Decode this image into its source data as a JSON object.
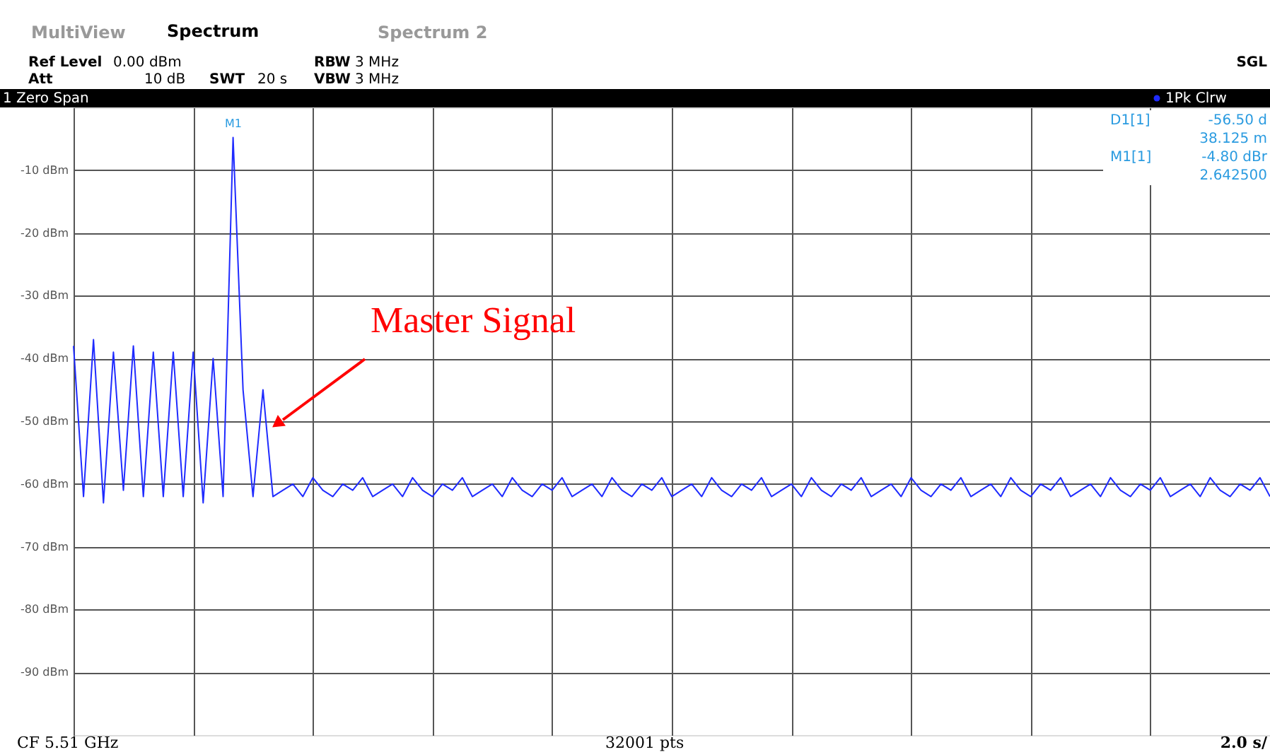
{
  "chart_data": {
    "type": "line",
    "title": "1 Zero Span",
    "annotations": [
      "MultiView",
      "Spectrum",
      "Spectrum 2",
      "Ref Level",
      "0.00 dBm",
      "Att",
      "10 dB",
      "SWT",
      "20 s",
      "RBW",
      "3 MHz",
      "VBW",
      "3 MHz",
      "SGL",
      "D1[1]",
      "-56.50 d",
      "38.125 m",
      "M1[1]",
      "-4.80 dBr",
      "2.642500",
      "M1",
      "Master Signal",
      "CF 5.51 GHz",
      "32001 pts",
      "2.0 s/"
    ],
    "categories": [
      null,
      null,
      null,
      null,
      null,
      null,
      null,
      null,
      null,
      null,
      null,
      null,
      null,
      null,
      null,
      null,
      null,
      null,
      null,
      null,
      null,
      null,
      null,
      null,
      null,
      null,
      null,
      null,
      null,
      null,
      null,
      null,
      null,
      null,
      null,
      null,
      null,
      null,
      null,
      null,
      null,
      null,
      null,
      null,
      null,
      null,
      null,
      null,
      null,
      null,
      null,
      null,
      null,
      null,
      null,
      null,
      null,
      null,
      null,
      null,
      null,
      null,
      null,
      null,
      null,
      null,
      null,
      null,
      null,
      null,
      null,
      null,
      null,
      null,
      null,
      null,
      null,
      null,
      null,
      null,
      null,
      null,
      null,
      null,
      null,
      null,
      null,
      null,
      null,
      null,
      null,
      null,
      null,
      null,
      null,
      null,
      null,
      null,
      null,
      null,
      null,
      null,
      null,
      null,
      null,
      null,
      null,
      null,
      null,
      null,
      null,
      null,
      null,
      null,
      null,
      null,
      null,
      null,
      null,
      null,
      null
    ],
    "series": [
      {
        "name": "1Pk Clrw",
        "color": "#1f2bff",
        "values": [
          -38,
          -62,
          -37,
          -63,
          -39,
          -61,
          -38,
          -62,
          -39,
          -62,
          -39,
          -62,
          -39,
          -63,
          -40,
          -62,
          -4.8,
          -45,
          -62,
          -45,
          -62,
          -61,
          -60,
          -62,
          -59,
          -61,
          -62,
          -60,
          -61,
          -59,
          -62,
          -61,
          -60,
          -62,
          -59,
          -61,
          -62,
          -60,
          -61,
          -59,
          -62,
          -61,
          -60,
          -62,
          -59,
          -61,
          -62,
          -60,
          -61,
          -59,
          -62,
          -61,
          -60,
          -62,
          -59,
          -61,
          -62,
          -60,
          -61,
          -59,
          -62,
          -61,
          -60,
          -62,
          -59,
          -61,
          -62,
          -60,
          -61,
          -59,
          -62,
          -61,
          -60,
          -62,
          -59,
          -61,
          -62,
          -60,
          -61,
          -59,
          -62,
          -61,
          -60,
          -62,
          -59,
          -61,
          -62,
          -60,
          -61,
          -59,
          -62,
          -61,
          -60,
          -62,
          -59,
          -61,
          -62,
          -60,
          -61,
          -59,
          -62,
          -61,
          -60,
          -62,
          -59,
          -61,
          -62,
          -60,
          -61,
          -59,
          -62,
          -61,
          -60,
          -62,
          -59,
          -61,
          -62,
          -60,
          -61,
          -59,
          -62
        ]
      }
    ],
    "ylim": [
      -100,
      0
    ],
    "yticks": [
      {
        "value": -10,
        "label": "-10 dBm"
      },
      {
        "value": -20,
        "label": "-20 dBm"
      },
      {
        "value": -30,
        "label": "-30 dBm"
      },
      {
        "value": -40,
        "label": "-40 dBm"
      },
      {
        "value": -50,
        "label": "-50 dBm"
      },
      {
        "value": -60,
        "label": "-60 dBm"
      },
      {
        "value": -70,
        "label": "-70 dBm"
      },
      {
        "value": -80,
        "label": "-80 dBm"
      },
      {
        "value": -90,
        "label": "-90 dBm"
      }
    ],
    "grid": true,
    "legend": "top right"
  }
}
